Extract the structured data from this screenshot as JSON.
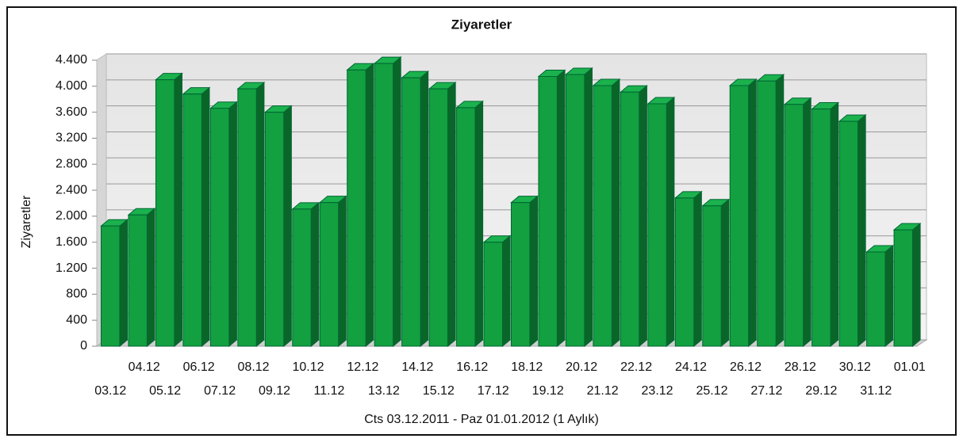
{
  "chart_data": {
    "type": "bar3d",
    "title": "Ziyaretler",
    "y_label": "Ziyaretler",
    "x_label": "Cts 03.12.2011 - Paz 01.01.2012 (1 Aylık)",
    "categories": [
      "03.12",
      "04.12",
      "05.12",
      "06.12",
      "07.12",
      "08.12",
      "09.12",
      "10.12",
      "11.12",
      "12.12",
      "13.12",
      "14.12",
      "15.12",
      "16.12",
      "17.12",
      "18.12",
      "19.12",
      "20.12",
      "21.12",
      "22.12",
      "23.12",
      "24.12",
      "25.12",
      "26.12",
      "27.12",
      "28.12",
      "29.12",
      "30.12",
      "31.12",
      "01.01"
    ],
    "values": [
      1850,
      2020,
      4100,
      3880,
      3660,
      3960,
      3600,
      2110,
      2210,
      4250,
      4350,
      4130,
      3960,
      3670,
      1600,
      2210,
      4150,
      4180,
      4010,
      3910,
      3730,
      2280,
      2160,
      4010,
      4080,
      3720,
      3650,
      3460,
      1450,
      1790
    ],
    "color": "#12a040",
    "ylim": [
      0,
      4400
    ],
    "yticks": [
      0,
      400,
      800,
      {
        "value": 1200,
        "label": "1.200"
      },
      {
        "value": 1600,
        "label": "1.600"
      },
      {
        "value": 2000,
        "label": "2.000"
      },
      {
        "value": 2400,
        "label": "2.400"
      },
      {
        "value": 2800,
        "label": "2.800"
      },
      {
        "value": 3200,
        "label": "3.200"
      },
      {
        "value": 3600,
        "label": "3.600"
      },
      {
        "value": 4000,
        "label": "4.000"
      },
      {
        "value": 4400,
        "label": "4.400"
      }
    ],
    "grid": true
  }
}
